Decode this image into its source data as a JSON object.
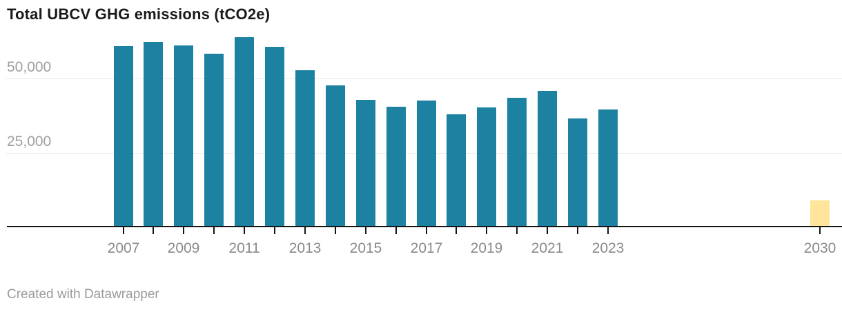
{
  "header": {
    "title": "Total UBCV GHG emissions (tCO2e)"
  },
  "footer": {
    "credit": "Created with Datawrapper"
  },
  "colors": {
    "bar_teal": "#1d81a2",
    "bar_highlight_yellow": "#ffe49c",
    "gridline": "#e6e6e6",
    "axis_line": "#141414",
    "x_axis_text": "#8a8a8a",
    "y_axis_text": "#a0a0a0",
    "title_text": "#1a1a1a",
    "footer_text": "#9b9b9b"
  },
  "chart_data": {
    "type": "bar",
    "title": "Total UBCV GHG emissions (tCO2e)",
    "categories": [
      "2007",
      "2008",
      "2009",
      "2010",
      "2011",
      "2012",
      "2013",
      "2014",
      "2015",
      "2016",
      "2017",
      "2018",
      "2019",
      "2020",
      "2021",
      "2022",
      "2023",
      "2030"
    ],
    "values": [
      61000,
      62400,
      61200,
      58300,
      64000,
      60700,
      52800,
      47700,
      42800,
      40500,
      42600,
      37900,
      40200,
      43500,
      45800,
      36500,
      39500,
      8800
    ],
    "series": [
      {
        "name": "Total UBCV GHG emissions",
        "values": [
          61000,
          62400,
          61200,
          58300,
          64000,
          60700,
          52800,
          47700,
          42800,
          40500,
          42600,
          37900,
          40200,
          43500,
          45800,
          36500,
          39500,
          8800
        ]
      }
    ],
    "bar_color_default": "#1d81a2",
    "highlight": {
      "category": "2030",
      "color": "#ffe49c"
    },
    "xlabel": "",
    "ylabel": "",
    "ylim": [
      0,
      65000
    ],
    "xlim_years": [
      2003.5,
      2030.7
    ],
    "y_ticks": [
      {
        "value": 25000,
        "label": "25,000"
      },
      {
        "value": 50000,
        "label": "50,000"
      }
    ],
    "x_tick_labels": [
      "2007",
      "2009",
      "2011",
      "2013",
      "2015",
      "2017",
      "2019",
      "2021",
      "2023",
      "2030"
    ],
    "grid": "horizontal-only",
    "legend": "none"
  }
}
